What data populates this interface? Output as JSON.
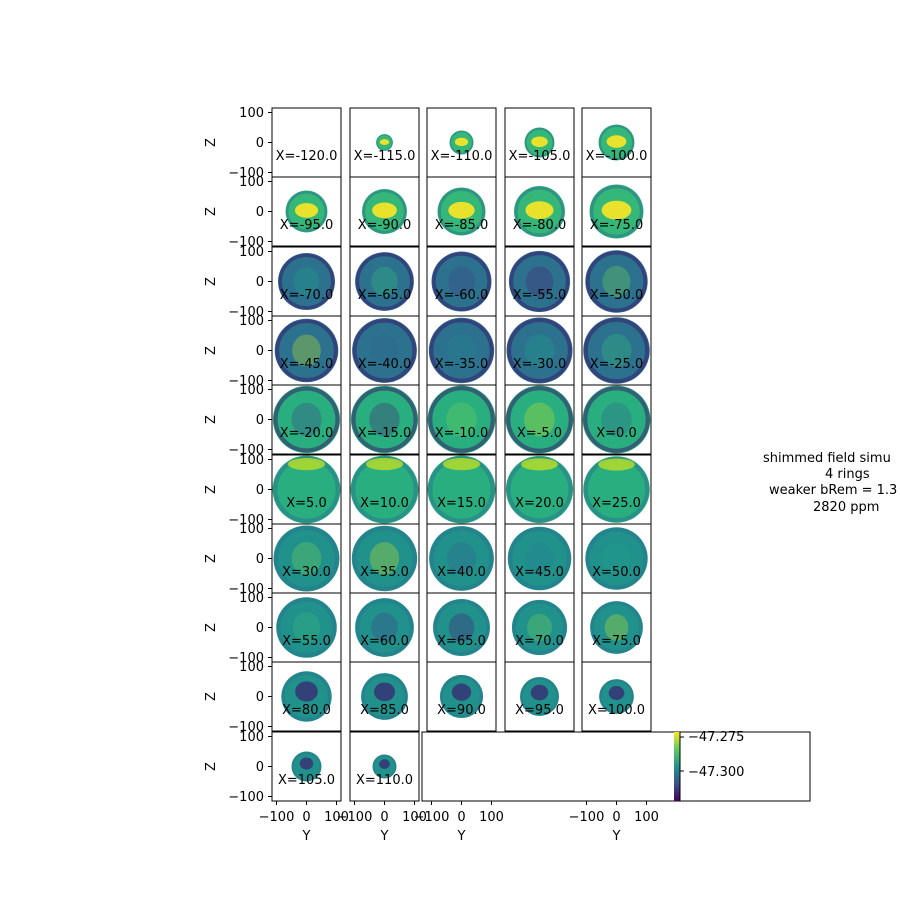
{
  "figure": {
    "title_lines": [
      "shimmed field simu",
      "4 rings",
      "weaker bRem = 1.3",
      "2820 ppm"
    ]
  },
  "colorbar": {
    "colormap": "viridis",
    "ticks": [
      "−47.275",
      "−47.300"
    ]
  },
  "chart_data": {
    "type": "heatmap",
    "title": "shimmed field simu\n4 rings\nweaker bRem = 1.3\n2820 ppm",
    "xlabel": "Y",
    "ylabel": "Z",
    "x_ticks": [
      "−100",
      "0",
      "100"
    ],
    "y_ticks": [
      "100",
      "0",
      "−100"
    ],
    "xlim": [
      -115,
      115
    ],
    "ylim": [
      -115,
      115
    ],
    "grid": false,
    "colorbar_ticks": [
      -47.275,
      -47.3
    ],
    "slices": [
      {
        "label": "X=-120.0",
        "x": -120,
        "radius": 0
      },
      {
        "label": "X=-115.0",
        "x": -115,
        "radius": 28
      },
      {
        "label": "X=-110.0",
        "x": -110,
        "radius": 40
      },
      {
        "label": "X=-105.0",
        "x": -105,
        "radius": 50
      },
      {
        "label": "X=-100.0",
        "x": -100,
        "radius": 60
      },
      {
        "label": "X=-95.0",
        "x": -95,
        "radius": 70
      },
      {
        "label": "X=-90.0",
        "x": -90,
        "radius": 75
      },
      {
        "label": "X=-85.0",
        "x": -85,
        "radius": 80
      },
      {
        "label": "X=-80.0",
        "x": -80,
        "radius": 85
      },
      {
        "label": "X=-75.0",
        "x": -75,
        "radius": 90
      },
      {
        "label": "X=-70.0",
        "x": -70,
        "radius": 95
      },
      {
        "label": "X=-65.0",
        "x": -65,
        "radius": 98
      },
      {
        "label": "X=-60.0",
        "x": -60,
        "radius": 100
      },
      {
        "label": "X=-55.0",
        "x": -55,
        "radius": 102
      },
      {
        "label": "X=-50.0",
        "x": -50,
        "radius": 104
      },
      {
        "label": "X=-45.0",
        "x": -45,
        "radius": 106
      },
      {
        "label": "X=-40.0",
        "x": -40,
        "radius": 108
      },
      {
        "label": "X=-35.0",
        "x": -35,
        "radius": 109
      },
      {
        "label": "X=-30.0",
        "x": -30,
        "radius": 110
      },
      {
        "label": "X=-25.0",
        "x": -25,
        "radius": 111
      },
      {
        "label": "X=-20.0",
        "x": -20,
        "radius": 112
      },
      {
        "label": "X=-15.0",
        "x": -15,
        "radius": 112
      },
      {
        "label": "X=-10.0",
        "x": -10,
        "radius": 113
      },
      {
        "label": "X=-5.0",
        "x": -5,
        "radius": 113
      },
      {
        "label": "X=0.0",
        "x": 0,
        "radius": 113
      },
      {
        "label": "X=5.0",
        "x": 5,
        "radius": 113
      },
      {
        "label": "X=10.0",
        "x": 10,
        "radius": 113
      },
      {
        "label": "X=15.0",
        "x": 15,
        "radius": 113
      },
      {
        "label": "X=20.0",
        "x": 20,
        "radius": 112
      },
      {
        "label": "X=25.0",
        "x": 25,
        "radius": 111
      },
      {
        "label": "X=30.0",
        "x": 30,
        "radius": 110
      },
      {
        "label": "X=35.0",
        "x": 35,
        "radius": 109
      },
      {
        "label": "X=40.0",
        "x": 40,
        "radius": 108
      },
      {
        "label": "X=45.0",
        "x": 45,
        "radius": 106
      },
      {
        "label": "X=50.0",
        "x": 50,
        "radius": 104
      },
      {
        "label": "X=55.0",
        "x": 55,
        "radius": 101
      },
      {
        "label": "X=60.0",
        "x": 60,
        "radius": 98
      },
      {
        "label": "X=65.0",
        "x": 65,
        "radius": 95
      },
      {
        "label": "X=70.0",
        "x": 70,
        "radius": 92
      },
      {
        "label": "X=75.0",
        "x": 75,
        "radius": 88
      },
      {
        "label": "X=80.0",
        "x": 80,
        "radius": 84
      },
      {
        "label": "X=85.0",
        "x": 85,
        "radius": 78
      },
      {
        "label": "X=90.0",
        "x": 90,
        "radius": 72
      },
      {
        "label": "X=95.0",
        "x": 95,
        "radius": 65
      },
      {
        "label": "X=100.0",
        "x": 100,
        "radius": 58
      },
      {
        "label": "X=105.0",
        "x": 105,
        "radius": 50
      },
      {
        "label": "X=110.0",
        "x": 110,
        "radius": 40
      }
    ]
  }
}
